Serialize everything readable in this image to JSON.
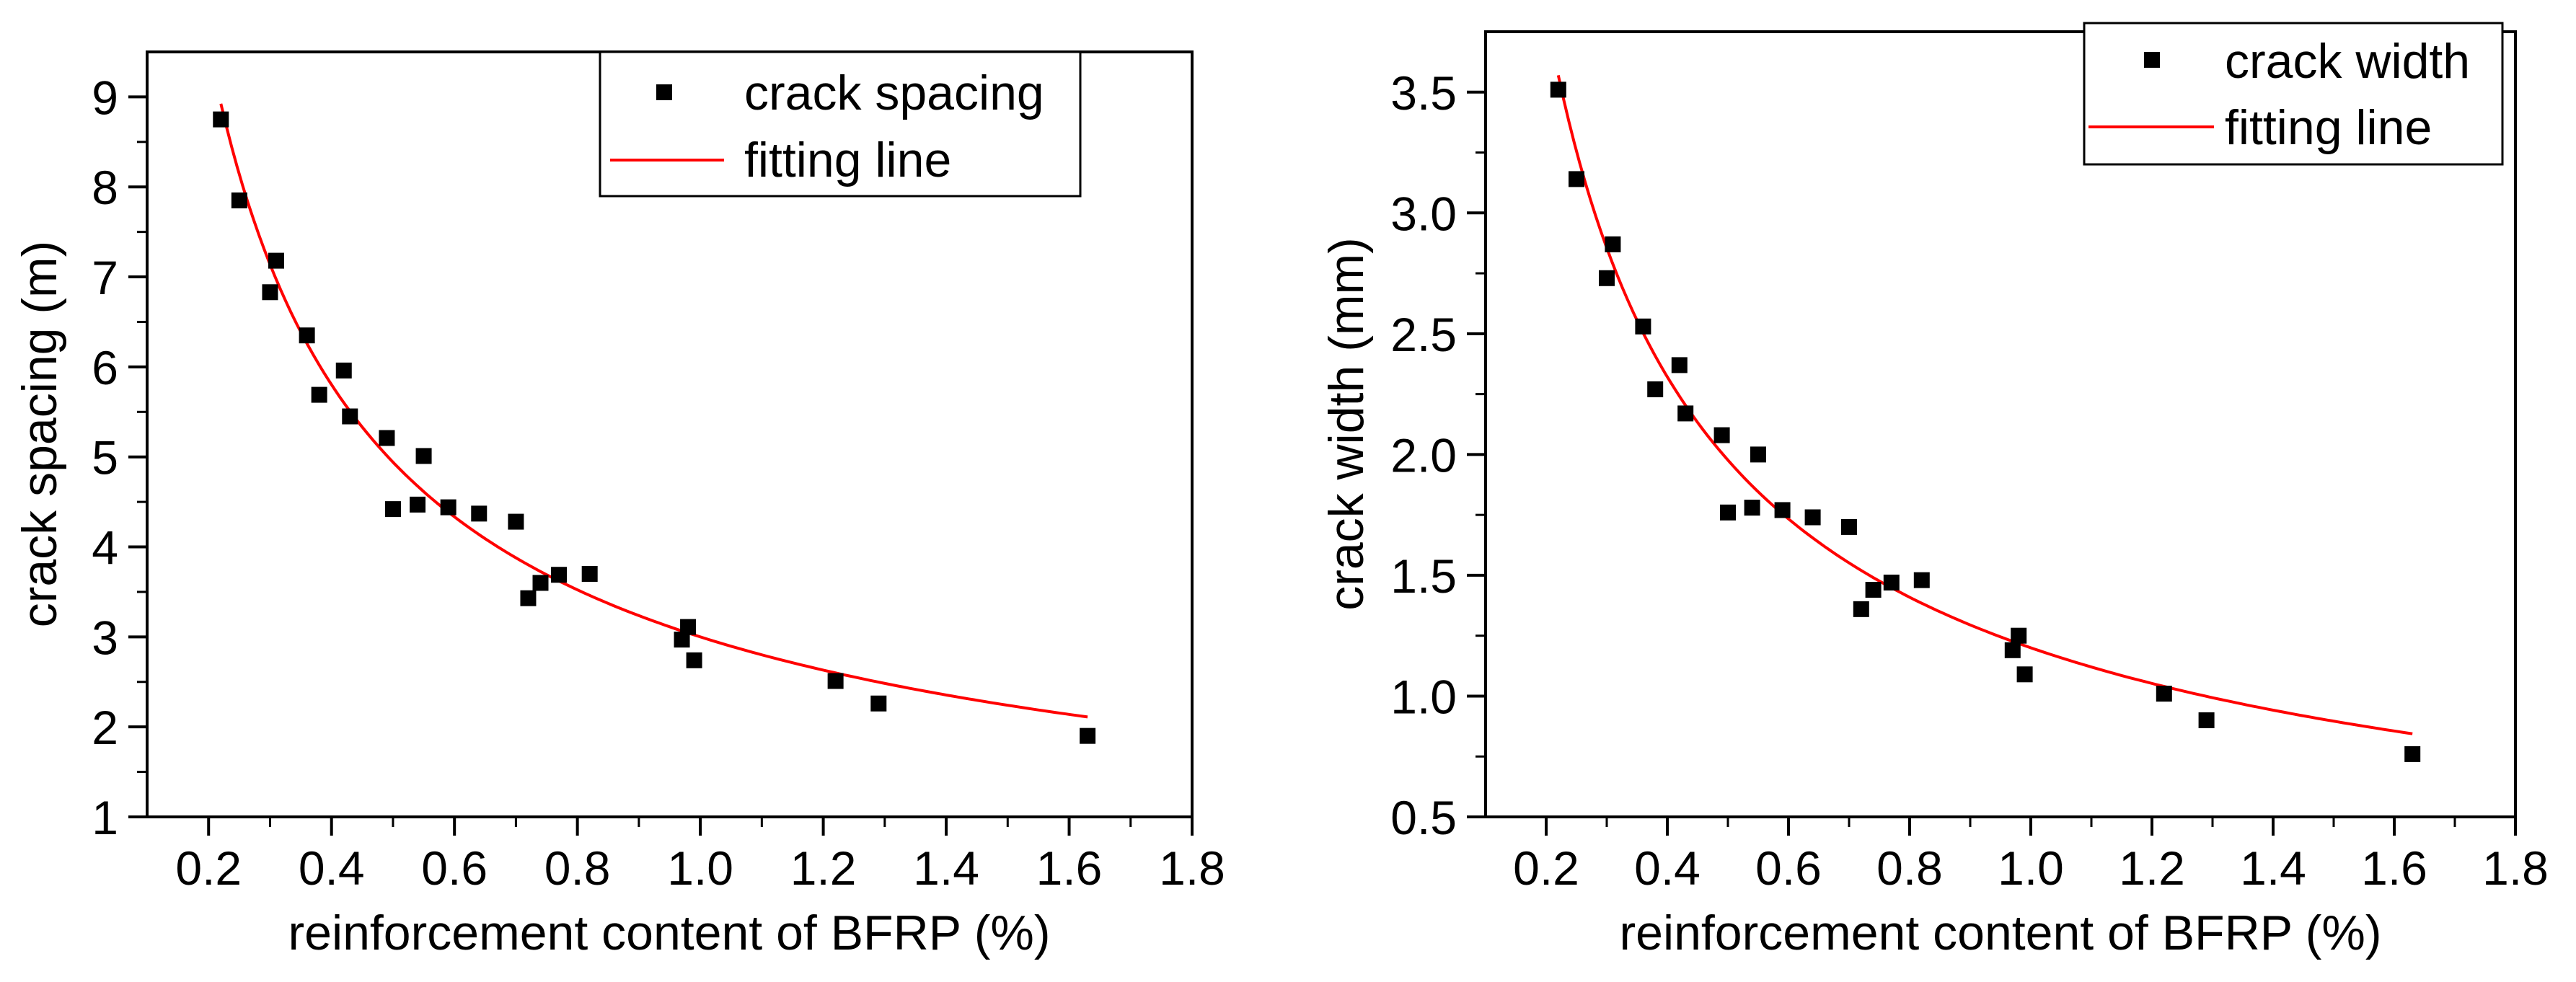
{
  "chart_data": [
    {
      "type": "scatter",
      "title": "",
      "xlabel": "reinforcement content of BFRP (%)",
      "ylabel": "crack spacing (m)",
      "xlim": [
        0.1,
        1.8
      ],
      "ylim": [
        1,
        9.5
      ],
      "xticks": [
        "0.2",
        "0.4",
        "0.6",
        "0.8",
        "1.0",
        "1.2",
        "1.4",
        "1.6",
        "1.8"
      ],
      "yticks": [
        "1",
        "2",
        "3",
        "4",
        "5",
        "6",
        "7",
        "8",
        "9"
      ],
      "xtick_values": [
        0.2,
        0.4,
        0.6,
        0.8,
        1.0,
        1.2,
        1.4,
        1.6,
        1.8
      ],
      "ytick_values": [
        1,
        2,
        3,
        4,
        5,
        6,
        7,
        8,
        9
      ],
      "legend_position": "top-right",
      "series": [
        {
          "name": "crack spacing",
          "kind": "scatter",
          "color": "#000000",
          "points": [
            [
              0.22,
              8.75
            ],
            [
              0.25,
              7.85
            ],
            [
              0.3,
              6.83
            ],
            [
              0.31,
              7.18
            ],
            [
              0.36,
              6.35
            ],
            [
              0.38,
              5.69
            ],
            [
              0.42,
              5.96
            ],
            [
              0.43,
              5.45
            ],
            [
              0.49,
              5.21
            ],
            [
              0.5,
              4.42
            ],
            [
              0.54,
              4.47
            ],
            [
              0.55,
              5.01
            ],
            [
              0.59,
              4.44
            ],
            [
              0.64,
              4.37
            ],
            [
              0.7,
              4.28
            ],
            [
              0.72,
              3.43
            ],
            [
              0.74,
              3.6
            ],
            [
              0.77,
              3.69
            ],
            [
              0.82,
              3.7
            ],
            [
              0.97,
              2.97
            ],
            [
              0.98,
              3.11
            ],
            [
              0.99,
              2.74
            ],
            [
              1.22,
              2.51
            ],
            [
              1.29,
              2.26
            ],
            [
              1.63,
              1.9
            ]
          ]
        },
        {
          "name": "fitting line",
          "kind": "line",
          "color": "#ff0000",
          "model": {
            "form": "a*x^b",
            "a": 3.0,
            "b": -0.72,
            "x_from": 0.22,
            "x_to": 1.63
          }
        }
      ]
    },
    {
      "type": "scatter",
      "title": "",
      "xlabel": "reinforcement content of BFRP (%)",
      "ylabel": "crack width (mm)",
      "xlim": [
        0.1,
        1.8
      ],
      "ylim": [
        0.5,
        3.75
      ],
      "xticks": [
        "0.2",
        "0.4",
        "0.6",
        "0.8",
        "1.0",
        "1.2",
        "1.4",
        "1.6",
        "1.8"
      ],
      "yticks": [
        "0.5",
        "1.0",
        "1.5",
        "2.0",
        "2.5",
        "3.0",
        "3.5"
      ],
      "xtick_values": [
        0.2,
        0.4,
        0.6,
        0.8,
        1.0,
        1.2,
        1.4,
        1.6,
        1.8
      ],
      "ytick_values": [
        0.5,
        1.0,
        1.5,
        2.0,
        2.5,
        3.0,
        3.5
      ],
      "legend_position": "top-right",
      "series": [
        {
          "name": "crack width",
          "kind": "scatter",
          "color": "#000000",
          "points": [
            [
              0.22,
              3.51
            ],
            [
              0.25,
              3.14
            ],
            [
              0.3,
              2.73
            ],
            [
              0.31,
              2.87
            ],
            [
              0.36,
              2.53
            ],
            [
              0.38,
              2.27
            ],
            [
              0.42,
              2.37
            ],
            [
              0.43,
              2.17
            ],
            [
              0.49,
              2.08
            ],
            [
              0.5,
              1.76
            ],
            [
              0.54,
              1.78
            ],
            [
              0.55,
              2.0
            ],
            [
              0.59,
              1.77
            ],
            [
              0.64,
              1.74
            ],
            [
              0.7,
              1.7
            ],
            [
              0.72,
              1.36
            ],
            [
              0.74,
              1.44
            ],
            [
              0.77,
              1.47
            ],
            [
              0.82,
              1.48
            ],
            [
              0.97,
              1.19
            ],
            [
              0.98,
              1.25
            ],
            [
              0.99,
              1.09
            ],
            [
              1.22,
              1.01
            ],
            [
              1.29,
              0.9
            ],
            [
              1.63,
              0.76
            ]
          ]
        },
        {
          "name": "fitting line",
          "kind": "line",
          "color": "#ff0000",
          "model": {
            "form": "a*x^b",
            "a": 1.2,
            "b": -0.72,
            "x_from": 0.22,
            "x_to": 1.63
          }
        }
      ]
    }
  ]
}
